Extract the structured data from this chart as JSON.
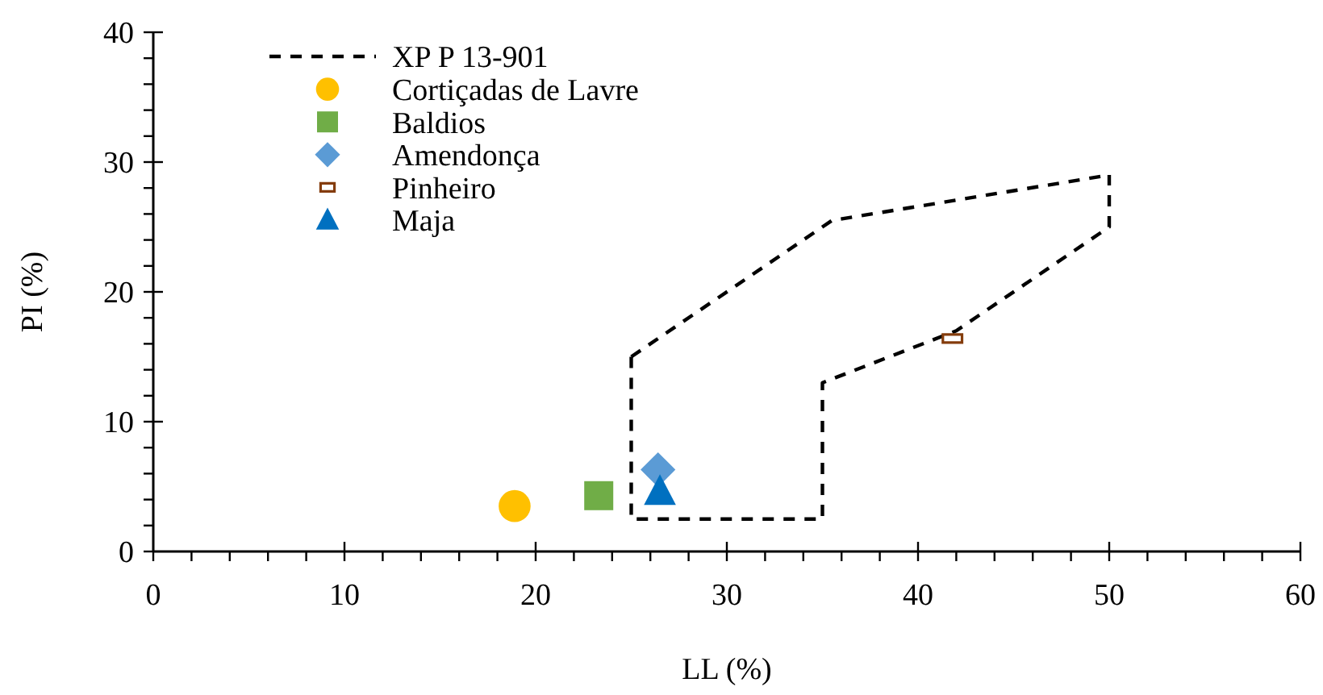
{
  "chart_data": {
    "type": "scatter",
    "xlabel": "LL (%)",
    "ylabel": "PI (%)",
    "xlim": [
      0,
      60
    ],
    "ylim": [
      0,
      40
    ],
    "xticks": [
      0,
      {
        "value": 2,
        "label": null
      },
      {
        "value": 4,
        "label": null
      },
      {
        "value": 6,
        "label": null
      },
      {
        "value": 8,
        "label": null
      },
      10,
      {
        "value": 12,
        "label": null
      },
      {
        "value": 14,
        "label": null
      },
      {
        "value": 16,
        "label": null
      },
      {
        "value": 18,
        "label": null
      },
      20,
      {
        "value": 22,
        "label": null
      },
      {
        "value": 24,
        "label": null
      },
      {
        "value": 26,
        "label": null
      },
      {
        "value": 28,
        "label": null
      },
      30,
      {
        "value": 32,
        "label": null
      },
      {
        "value": 34,
        "label": null
      },
      {
        "value": 36,
        "label": null
      },
      {
        "value": 38,
        "label": null
      },
      40,
      {
        "value": 42,
        "label": null
      },
      {
        "value": 44,
        "label": null
      },
      {
        "value": 46,
        "label": null
      },
      {
        "value": 48,
        "label": null
      },
      50,
      {
        "value": 52,
        "label": null
      },
      {
        "value": 54,
        "label": null
      },
      {
        "value": 56,
        "label": null
      },
      {
        "value": 58,
        "label": null
      },
      60
    ],
    "yticks": [
      0,
      {
        "value": 2,
        "label": null
      },
      {
        "value": 4,
        "label": null
      },
      {
        "value": 6,
        "label": null
      },
      {
        "value": 8,
        "label": null
      },
      10,
      {
        "value": 12,
        "label": null
      },
      {
        "value": 14,
        "label": null
      },
      {
        "value": 16,
        "label": null
      },
      {
        "value": 18,
        "label": null
      },
      20,
      {
        "value": 22,
        "label": null
      },
      {
        "value": 24,
        "label": null
      },
      {
        "value": 26,
        "label": null
      },
      {
        "value": 28,
        "label": null
      },
      30,
      {
        "value": 32,
        "label": null
      },
      {
        "value": 34,
        "label": null
      },
      {
        "value": 36,
        "label": null
      },
      {
        "value": 38,
        "label": null
      },
      40
    ],
    "grid": false,
    "legend": "top left",
    "series": [
      {
        "name": "XP P 13-901",
        "type": "line",
        "color": "#000000",
        "line_style": "dashed",
        "marker": "none",
        "x": [
          25,
          25,
          35,
          35,
          42,
          50,
          50
        ],
        "values": [
          15,
          2.5,
          2.5,
          13,
          17,
          25,
          29
        ]
      },
      {
        "type": "line",
        "color": "#000000",
        "line_style": "dashed",
        "marker": "none",
        "x": [
          25,
          35.5,
          50
        ],
        "values": [
          15,
          25.5,
          29
        ]
      },
      {
        "name": "Cortiçadas de Lavre",
        "color": "#ffc000",
        "marker": "circle",
        "x": [
          18.9
        ],
        "values": [
          3.5
        ]
      },
      {
        "name": "Baldios",
        "color": "#70ad47",
        "marker": "square",
        "x": [
          23.3
        ],
        "values": [
          4.3
        ]
      },
      {
        "name": "Amendonça",
        "color": "#5b9bd5",
        "marker": "diamond",
        "x": [
          26.4
        ],
        "values": [
          6.3
        ]
      },
      {
        "name": "Pinheiro",
        "color": "#843c0c",
        "marker": "square",
        "x": [
          41.8
        ],
        "values": [
          16.4
        ]
      },
      {
        "name": "Maja",
        "color": "#0070c0",
        "marker": "triangle",
        "x": [
          26.5
        ],
        "values": [
          4.6
        ]
      }
    ]
  }
}
